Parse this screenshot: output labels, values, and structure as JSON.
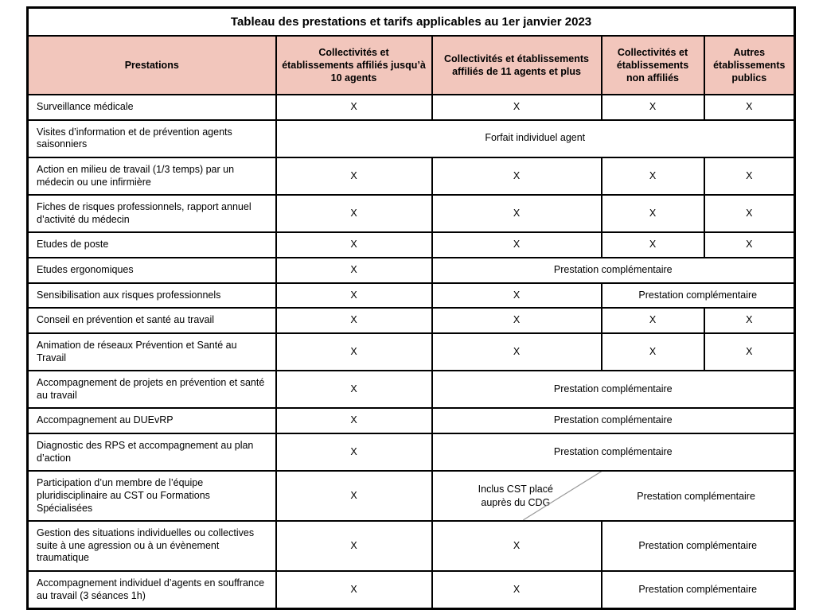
{
  "title": "Tableau des prestations et tarifs applicables au 1er janvier 2023",
  "theme": {
    "header_bg": "#f2c6bc",
    "border_color": "#000000",
    "diagonal_line_color": "#999999"
  },
  "columns": [
    "Prestations",
    "Collectivités et établissements affiliés jusqu’à 10 agents",
    "Collectivités et établissements affiliés de 11 agents et plus",
    "Collectivités et établissements non affiliés",
    "Autres établissements publics"
  ],
  "mark": "X",
  "rows": [
    {
      "label": "Surveillance médicale",
      "cells": [
        {
          "text": "X"
        },
        {
          "text": "X"
        },
        {
          "text": "X"
        },
        {
          "text": "X"
        }
      ]
    },
    {
      "label": "Visites d’information et de prévention agents saisonniers",
      "cells": [
        {
          "text": "Forfait individuel agent",
          "span": 4
        }
      ]
    },
    {
      "label": "Action en milieu de travail (1/3 temps) par un médecin ou une infirmière",
      "cells": [
        {
          "text": "X"
        },
        {
          "text": "X"
        },
        {
          "text": "X"
        },
        {
          "text": "X"
        }
      ]
    },
    {
      "label": "Fiches de risques professionnels, rapport annuel d’activité du médecin",
      "cells": [
        {
          "text": "X"
        },
        {
          "text": "X"
        },
        {
          "text": "X"
        },
        {
          "text": "X"
        }
      ]
    },
    {
      "label": "Etudes de poste",
      "cells": [
        {
          "text": "X"
        },
        {
          "text": "X"
        },
        {
          "text": "X"
        },
        {
          "text": "X"
        }
      ]
    },
    {
      "label": "Etudes ergonomiques",
      "cells": [
        {
          "text": "X"
        },
        {
          "text": "Prestation complémentaire",
          "span": 3
        }
      ]
    },
    {
      "label": "Sensibilisation aux risques professionnels",
      "cells": [
        {
          "text": "X"
        },
        {
          "text": "X"
        },
        {
          "text": "Prestation complémentaire",
          "span": 2
        }
      ]
    },
    {
      "label": "Conseil en prévention et santé au travail",
      "cells": [
        {
          "text": "X"
        },
        {
          "text": "X"
        },
        {
          "text": "X"
        },
        {
          "text": "X"
        }
      ]
    },
    {
      "label": "Animation de réseaux Prévention et Santé au Travail",
      "cells": [
        {
          "text": "X"
        },
        {
          "text": "X"
        },
        {
          "text": "X"
        },
        {
          "text": "X"
        }
      ]
    },
    {
      "label": "Accompagnement de projets en prévention et santé au travail",
      "cells": [
        {
          "text": "X"
        },
        {
          "text": "Prestation complémentaire",
          "span": 3
        }
      ]
    },
    {
      "label": "Accompagnement au DUEvRP",
      "cells": [
        {
          "text": "X"
        },
        {
          "text": "Prestation complémentaire",
          "span": 3
        }
      ]
    },
    {
      "label": "Diagnostic des RPS et accompagnement au plan d’action",
      "cells": [
        {
          "text": "X"
        },
        {
          "text": "Prestation complémentaire",
          "span": 3
        }
      ]
    },
    {
      "label": "Participation d’un membre de l’équipe pluridisciplinaire au CST ou Formations Spécialisées",
      "cells": [
        {
          "text": "X"
        },
        {
          "type": "diagonal",
          "span": 3,
          "left": "Inclus CST placé auprès du CDG",
          "right": "Prestation complémentaire"
        }
      ]
    },
    {
      "label": "Gestion des situations individuelles ou collectives suite à une agression ou à un évènement traumatique",
      "cells": [
        {
          "text": "X"
        },
        {
          "text": "X"
        },
        {
          "text": "Prestation complémentaire",
          "span": 2
        }
      ]
    },
    {
      "label": "Accompagnement individuel d’agents en souffrance au travail (3 séances 1h)",
      "cells": [
        {
          "text": "X"
        },
        {
          "text": "X"
        },
        {
          "text": "Prestation complémentaire",
          "span": 2
        }
      ]
    }
  ]
}
